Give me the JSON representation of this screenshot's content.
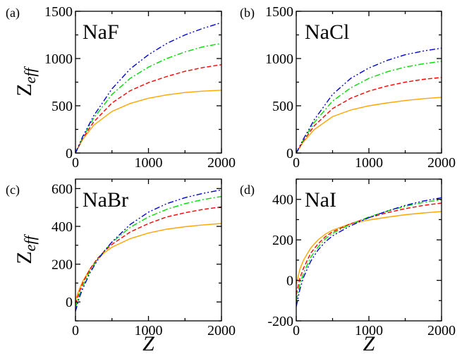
{
  "chart_data": [
    {
      "type": "line",
      "panel_label": "(a)",
      "compound": "NaF",
      "ylabel": "Z",
      "ylabel_sub": "eff",
      "xlabel": "",
      "xlim": [
        0,
        2000
      ],
      "ylim": [
        0,
        1500
      ],
      "xticks": [
        0,
        1000,
        2000
      ],
      "yticks": [
        0,
        500,
        1000,
        1500
      ],
      "series": [
        {
          "style": "solid",
          "color": "#ffa500",
          "x": [
            0,
            100,
            250,
            500,
            750,
            1000,
            1250,
            1500,
            1750,
            2000
          ],
          "y": [
            0,
            145,
            295,
            440,
            525,
            580,
            615,
            640,
            655,
            665
          ]
        },
        {
          "style": "dashed",
          "color": "#ff0000",
          "x": [
            0,
            100,
            250,
            500,
            750,
            1000,
            1250,
            1500,
            1750,
            2000
          ],
          "y": [
            0,
            155,
            330,
            530,
            660,
            745,
            810,
            865,
            905,
            935
          ]
        },
        {
          "style": "dash-dot",
          "color": "#00dd00",
          "x": [
            0,
            100,
            250,
            500,
            750,
            1000,
            1250,
            1500,
            1750,
            2000
          ],
          "y": [
            0,
            165,
            370,
            620,
            790,
            910,
            1000,
            1070,
            1125,
            1160
          ]
        },
        {
          "style": "dash-dot-dot",
          "color": "#0000dd",
          "x": [
            0,
            100,
            250,
            500,
            750,
            1000,
            1250,
            1500,
            1750,
            2000
          ],
          "y": [
            0,
            175,
            395,
            680,
            890,
            1040,
            1160,
            1250,
            1320,
            1380
          ]
        }
      ]
    },
    {
      "type": "line",
      "panel_label": "(b)",
      "compound": "NaCl",
      "xlabel": "",
      "ylabel": "",
      "xlim": [
        0,
        2000
      ],
      "ylim": [
        0,
        1500
      ],
      "xticks": [
        0,
        1000,
        2000
      ],
      "yticks": [
        0,
        500,
        1000,
        1500
      ],
      "series": [
        {
          "style": "solid",
          "color": "#ffa500",
          "x": [
            0,
            100,
            250,
            500,
            750,
            1000,
            1250,
            1500,
            1750,
            2000
          ],
          "y": [
            0,
            120,
            250,
            385,
            455,
            500,
            530,
            555,
            575,
            590
          ]
        },
        {
          "style": "dashed",
          "color": "#ff0000",
          "x": [
            0,
            100,
            250,
            500,
            750,
            1000,
            1250,
            1500,
            1750,
            2000
          ],
          "y": [
            0,
            130,
            290,
            470,
            580,
            655,
            710,
            750,
            780,
            800
          ]
        },
        {
          "style": "dash-dot",
          "color": "#00dd00",
          "x": [
            0,
            100,
            250,
            500,
            750,
            1000,
            1250,
            1500,
            1750,
            2000
          ],
          "y": [
            0,
            140,
            325,
            550,
            690,
            790,
            860,
            910,
            945,
            970
          ]
        },
        {
          "style": "dash-dot-dot",
          "color": "#0000dd",
          "x": [
            0,
            100,
            250,
            500,
            750,
            1000,
            1250,
            1500,
            1750,
            2000
          ],
          "y": [
            0,
            150,
            355,
            620,
            790,
            900,
            980,
            1040,
            1080,
            1110
          ]
        }
      ]
    },
    {
      "type": "line",
      "panel_label": "(c)",
      "compound": "NaBr",
      "ylabel": "Z",
      "ylabel_sub": "eff",
      "xlabel": "",
      "xlim": [
        0,
        2000
      ],
      "ylim": [
        -100,
        650
      ],
      "xticks": [
        0,
        1000,
        2000
      ],
      "yticks": [
        0,
        200,
        400,
        600
      ],
      "series": [
        {
          "style": "solid",
          "color": "#ffa500",
          "x": [
            0,
            50,
            100,
            200,
            300,
            400,
            500,
            750,
            1000,
            1250,
            1500,
            1750,
            2000
          ],
          "y": [
            10,
            65,
            110,
            175,
            225,
            262,
            290,
            335,
            365,
            385,
            398,
            408,
            415
          ]
        },
        {
          "style": "dashed",
          "color": "#ff0000",
          "x": [
            0,
            50,
            100,
            200,
            300,
            400,
            500,
            750,
            1000,
            1250,
            1500,
            1750,
            2000
          ],
          "y": [
            -10,
            50,
            100,
            175,
            230,
            270,
            305,
            370,
            415,
            450,
            472,
            490,
            503
          ]
        },
        {
          "style": "dash-dot",
          "color": "#00dd00",
          "x": [
            0,
            50,
            100,
            200,
            300,
            400,
            500,
            750,
            1000,
            1250,
            1500,
            1750,
            2000
          ],
          "y": [
            -30,
            35,
            85,
            165,
            225,
            272,
            315,
            395,
            450,
            490,
            520,
            542,
            558
          ]
        },
        {
          "style": "dash-dot-dot",
          "color": "#0000dd",
          "x": [
            0,
            50,
            100,
            200,
            300,
            400,
            500,
            750,
            1000,
            1250,
            1500,
            1750,
            2000
          ],
          "y": [
            -50,
            20,
            70,
            155,
            220,
            272,
            318,
            410,
            475,
            520,
            552,
            575,
            593
          ]
        }
      ]
    },
    {
      "type": "line",
      "panel_label": "(d)",
      "compound": "NaI",
      "xlabel": "",
      "ylabel": "",
      "xlim": [
        0,
        2000
      ],
      "ylim": [
        -200,
        500
      ],
      "xticks": [
        0,
        1000,
        2000
      ],
      "yticks": [
        -200,
        0,
        200,
        400
      ],
      "series": [
        {
          "style": "solid",
          "color": "#ffa500",
          "x": [
            0,
            50,
            100,
            200,
            300,
            400,
            500,
            750,
            1000,
            1250,
            1500,
            1750,
            2000
          ],
          "y": [
            -20,
            55,
            100,
            160,
            200,
            228,
            248,
            280,
            298,
            312,
            324,
            333,
            340
          ]
        },
        {
          "style": "dashed",
          "color": "#ff0000",
          "x": [
            0,
            50,
            100,
            200,
            300,
            400,
            500,
            750,
            1000,
            1250,
            1500,
            1750,
            2000
          ],
          "y": [
            -70,
            10,
            60,
            135,
            180,
            215,
            240,
            280,
            310,
            334,
            354,
            370,
            382
          ]
        },
        {
          "style": "dash-dot",
          "color": "#00dd00",
          "x": [
            0,
            50,
            100,
            200,
            300,
            400,
            500,
            750,
            1000,
            1250,
            1500,
            1750,
            2000
          ],
          "y": [
            -100,
            -20,
            35,
            115,
            165,
            205,
            232,
            278,
            313,
            342,
            366,
            385,
            398
          ]
        },
        {
          "style": "dash-dot-dot",
          "color": "#0000dd",
          "x": [
            0,
            50,
            100,
            200,
            300,
            400,
            500,
            750,
            1000,
            1250,
            1500,
            1750,
            2000
          ],
          "y": [
            -130,
            -45,
            15,
            95,
            150,
            190,
            220,
            270,
            310,
            342,
            370,
            392,
            408
          ]
        }
      ]
    }
  ],
  "figure": {
    "x_axis_title": "Z"
  }
}
